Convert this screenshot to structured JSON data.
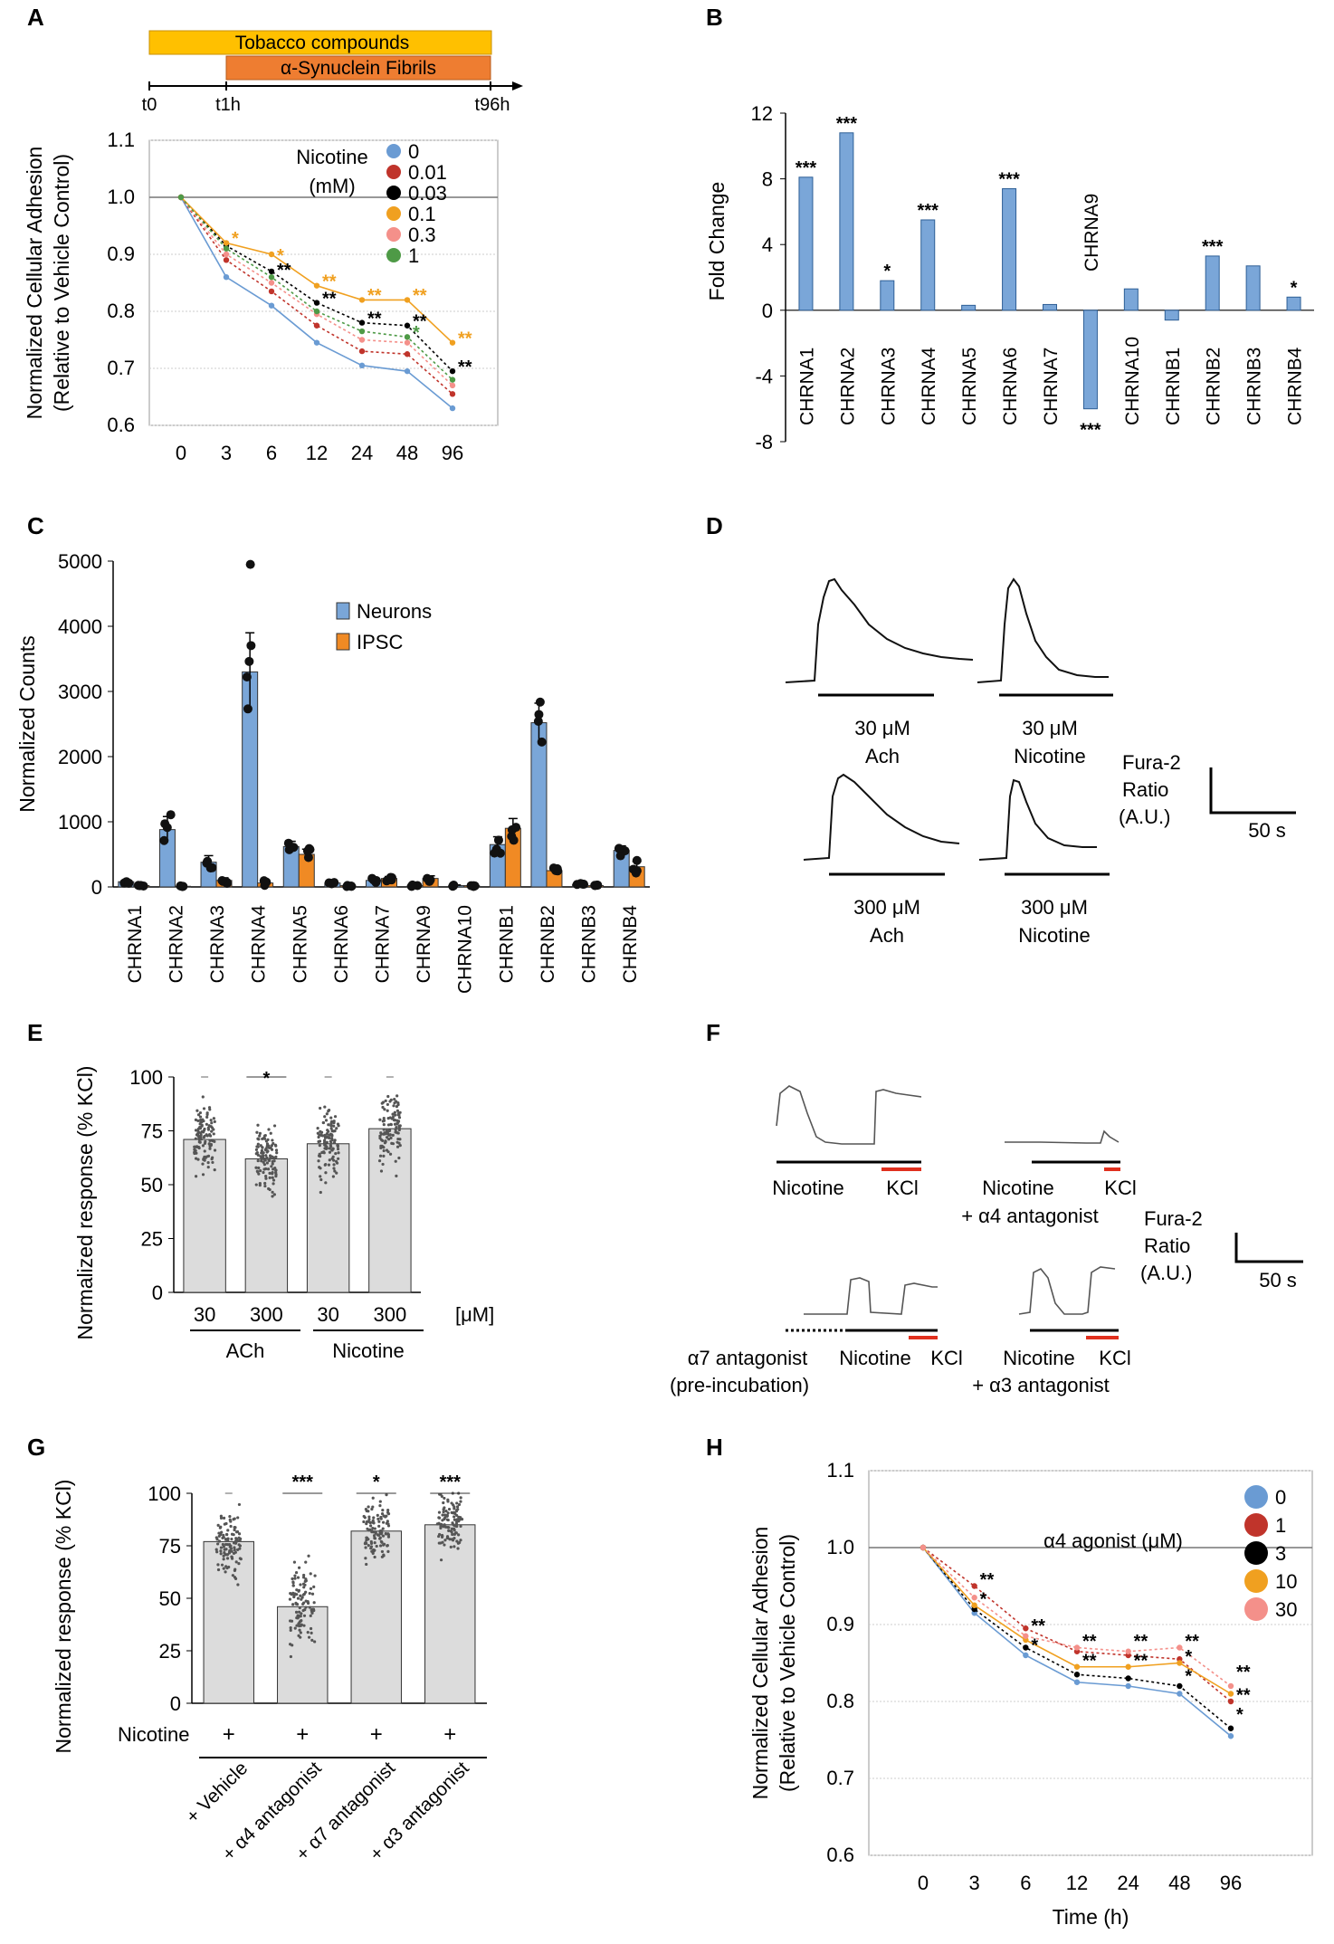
{
  "panel_labels": {
    "A": "A",
    "B": "B",
    "C": "C",
    "D": "D",
    "E": "E",
    "F": "F",
    "G": "G",
    "H": "H"
  },
  "colors": {
    "blue": "#6a9bd3",
    "bar_blue": "#7aa6d8",
    "orange": "#f0a020",
    "bar_orange": "#f08a24",
    "red": "#c0342b",
    "black": "#000000",
    "pink": "#f4908a",
    "green": "#4e9a46",
    "gray_bar": "#dcdcdc",
    "timeline_yellow": "#ffc000",
    "timeline_orange": "#ee7d31",
    "kcl_red": "#e0301e"
  },
  "timeline": {
    "bar1": "Tobacco compounds",
    "bar2": "α-Synuclein Fibrils",
    "t0": "t0",
    "t1": "t1h",
    "t96": "t96h"
  },
  "chart_data": [
    {
      "panel": "A",
      "type": "line",
      "ylabel_1": "Normalized Cellular Adhesion",
      "ylabel_2": "(Relative to Vehicle Control)",
      "categories": [
        "0",
        "3",
        "6",
        "12",
        "24",
        "48",
        "96"
      ],
      "ylim": [
        0.6,
        1.1
      ],
      "yticks": [
        "0.6",
        "0.7",
        "0.8",
        "0.9",
        "1.0",
        "1.1"
      ],
      "legend_title_1": "Nicotine",
      "legend_title_2": "(mM)",
      "series": [
        {
          "name": "0",
          "color": "#6a9bd3",
          "dash": false,
          "values": [
            1.0,
            0.86,
            0.81,
            0.745,
            0.705,
            0.695,
            0.63
          ]
        },
        {
          "name": "0.01",
          "color": "#c0342b",
          "dash": true,
          "values": [
            1.0,
            0.89,
            0.835,
            0.775,
            0.73,
            0.725,
            0.655
          ]
        },
        {
          "name": "0.03",
          "color": "#000000",
          "dash": true,
          "values": [
            1.0,
            0.915,
            0.87,
            0.815,
            0.78,
            0.775,
            0.695
          ]
        },
        {
          "name": "0.1",
          "color": "#f0a020",
          "dash": false,
          "values": [
            1.0,
            0.92,
            0.9,
            0.845,
            0.82,
            0.82,
            0.745
          ]
        },
        {
          "name": "0.3",
          "color": "#f4908a",
          "dash": true,
          "values": [
            1.0,
            0.9,
            0.85,
            0.795,
            0.75,
            0.745,
            0.67
          ]
        },
        {
          "name": "1",
          "color": "#4e9a46",
          "dash": true,
          "values": [
            1.0,
            0.91,
            0.86,
            0.8,
            0.765,
            0.755,
            0.68
          ]
        }
      ],
      "annotations": [
        {
          "text": "*",
          "x": 1,
          "y": 0.93,
          "color": "#f0a020"
        },
        {
          "text": "*",
          "x": 2,
          "y": 0.9,
          "color": "#f0a020"
        },
        {
          "text": "**",
          "x": 2,
          "y": 0.875,
          "color": "#000000"
        },
        {
          "text": "**",
          "x": 3,
          "y": 0.855,
          "color": "#f0a020"
        },
        {
          "text": "**",
          "x": 3,
          "y": 0.825,
          "color": "#000000"
        },
        {
          "text": "**",
          "x": 4,
          "y": 0.83,
          "color": "#f0a020"
        },
        {
          "text": "**",
          "x": 4,
          "y": 0.79,
          "color": "#000000"
        },
        {
          "text": "**",
          "x": 5,
          "y": 0.83,
          "color": "#f0a020"
        },
        {
          "text": "**",
          "x": 5,
          "y": 0.785,
          "color": "#000000"
        },
        {
          "text": "*",
          "x": 5,
          "y": 0.765,
          "color": "#4e9a46"
        },
        {
          "text": "**",
          "x": 6,
          "y": 0.755,
          "color": "#f0a020"
        },
        {
          "text": "**",
          "x": 6,
          "y": 0.705,
          "color": "#000000"
        }
      ]
    },
    {
      "panel": "B",
      "type": "bar",
      "ylabel": "Fold Change",
      "categories": [
        "CHRNA1",
        "CHRNA2",
        "CHRNA3",
        "CHRNA4",
        "CHRNA5",
        "CHRNA6",
        "CHRNA7",
        "CHRNA9",
        "CHRNA10",
        "CHRNB1",
        "CHRNB2",
        "CHRNB3",
        "CHRNB4"
      ],
      "values": [
        8.1,
        10.8,
        1.8,
        5.5,
        0.3,
        7.4,
        0.35,
        -6,
        1.3,
        -0.6,
        3.3,
        2.7,
        0.8
      ],
      "significance": [
        "***",
        "***",
        "*",
        "***",
        "",
        "***",
        "",
        "***",
        "",
        "",
        "***",
        "",
        "*"
      ],
      "ylim": [
        -8,
        12
      ],
      "yticks": [
        "-8",
        "-4",
        "0",
        "4",
        "8",
        "12"
      ]
    },
    {
      "panel": "C",
      "type": "bar",
      "ylabel": "Normalized Counts",
      "categories": [
        "CHRNA1",
        "CHRNA2",
        "CHRNA3",
        "CHRNA4",
        "CHRNA5",
        "CHRNA6",
        "CHRNA7",
        "CHRNA9",
        "CHRNA10",
        "CHRNB1",
        "CHRNB2",
        "CHRNB3",
        "CHRNB4"
      ],
      "ylim": [
        0,
        5000
      ],
      "yticks": [
        "0",
        "1000",
        "2000",
        "3000",
        "4000",
        "5000"
      ],
      "series": [
        {
          "name": "Neurons",
          "color": "#7aa6d8",
          "values": [
            80,
            880,
            380,
            3300,
            620,
            60,
            100,
            20,
            20,
            650,
            2520,
            40,
            560
          ],
          "errors": [
            20,
            200,
            100,
            600,
            80,
            15,
            30,
            10,
            10,
            120,
            300,
            10,
            70
          ]
        },
        {
          "name": "IPSC",
          "color": "#f08a24",
          "values": [
            20,
            10,
            100,
            60,
            500,
            20,
            130,
            130,
            20,
            900,
            250,
            20,
            310
          ],
          "errors": [
            10,
            5,
            40,
            30,
            80,
            10,
            30,
            40,
            10,
            150,
            40,
            10,
            80
          ]
        }
      ]
    },
    {
      "panel": "E",
      "type": "bar",
      "ylabel": "Normalized response (% KCl)",
      "categories": [
        "30",
        "300",
        "30",
        "300"
      ],
      "groups": [
        "ACh",
        "Nicotine"
      ],
      "unit": "[μM]",
      "values": [
        71,
        62,
        69,
        76
      ],
      "significance": [
        "",
        "*",
        "",
        ""
      ],
      "ylim": [
        0,
        100
      ],
      "yticks": [
        "0",
        "25",
        "50",
        "75",
        "100"
      ]
    },
    {
      "panel": "G",
      "type": "bar",
      "ylabel": "Normalized response (% KCl)",
      "row_label": "Nicotine",
      "plus": [
        "+",
        "+",
        "+",
        "+"
      ],
      "categories": [
        "+ Vehicle",
        "+ α4 antagonist",
        "+ α7 antagonist",
        "+ α3 antagonist"
      ],
      "values": [
        77,
        46,
        82,
        85
      ],
      "significance": [
        "",
        "***",
        "*",
        "***"
      ],
      "ylim": [
        0,
        100
      ],
      "yticks": [
        "0",
        "25",
        "50",
        "75",
        "100"
      ]
    },
    {
      "panel": "H",
      "type": "line",
      "ylabel_1": "Normalized Cellular Adhesion",
      "ylabel_2": "(Relative to Vehicle Control)",
      "xlabel": "Time (h)",
      "categories": [
        "0",
        "3",
        "6",
        "12",
        "24",
        "48",
        "96"
      ],
      "ylim": [
        0.6,
        1.1
      ],
      "yticks": [
        "0.6",
        "0.7",
        "0.8",
        "0.9",
        "1.0",
        "1.1"
      ],
      "legend_title": "α4 agonist (μM)",
      "series": [
        {
          "name": "0",
          "color": "#6a9bd3",
          "dash": false,
          "values": [
            1.0,
            0.915,
            0.86,
            0.825,
            0.82,
            0.81,
            0.755
          ]
        },
        {
          "name": "1",
          "color": "#c0342b",
          "dash": true,
          "values": [
            1.0,
            0.95,
            0.895,
            0.865,
            0.86,
            0.855,
            0.8
          ]
        },
        {
          "name": "3",
          "color": "#000000",
          "dash": true,
          "values": [
            1.0,
            0.92,
            0.87,
            0.835,
            0.83,
            0.82,
            0.765
          ]
        },
        {
          "name": "10",
          "color": "#f0a020",
          "dash": false,
          "values": [
            1.0,
            0.925,
            0.88,
            0.845,
            0.845,
            0.85,
            0.81
          ]
        },
        {
          "name": "30",
          "color": "#f4908a",
          "dash": true,
          "values": [
            1.0,
            0.935,
            0.885,
            0.87,
            0.865,
            0.87,
            0.82
          ]
        }
      ],
      "annotations": [
        {
          "text": "**",
          "x": 1,
          "y": 0.96
        },
        {
          "text": "*",
          "x": 1,
          "y": 0.935
        },
        {
          "text": "**",
          "x": 2,
          "y": 0.9
        },
        {
          "text": "*",
          "x": 2,
          "y": 0.875
        },
        {
          "text": "**",
          "x": 3,
          "y": 0.88
        },
        {
          "text": "**",
          "x": 3,
          "y": 0.855
        },
        {
          "text": "**",
          "x": 4,
          "y": 0.88
        },
        {
          "text": "**",
          "x": 4,
          "y": 0.855
        },
        {
          "text": "**",
          "x": 5,
          "y": 0.88
        },
        {
          "text": "*",
          "x": 5,
          "y": 0.86
        },
        {
          "text": "*",
          "x": 5,
          "y": 0.835
        },
        {
          "text": "**",
          "x": 6,
          "y": 0.84
        },
        {
          "text": "**",
          "x": 6,
          "y": 0.81
        },
        {
          "text": "*",
          "x": 6,
          "y": 0.785
        }
      ]
    }
  ],
  "traces_D": {
    "labels": [
      {
        "line1": "30 μM",
        "line2": "Ach"
      },
      {
        "line1": "30 μM",
        "line2": "Nicotine"
      },
      {
        "line1": "300 μM",
        "line2": "Ach"
      },
      {
        "line1": "300 μM",
        "line2": "Nicotine"
      }
    ],
    "scale_1": "Fura-2",
    "scale_2": "Ratio",
    "scale_3": "(A.U.)",
    "scale_time": "50 s"
  },
  "traces_F": {
    "nicotine": "Nicotine",
    "kcl": "KCl",
    "a4_antagonist": "+ α4 antagonist",
    "a7_line1": "α7 antagonist",
    "a7_line2": "(pre-incubation)",
    "a3_antagonist": "+ α3 antagonist",
    "scale_1": "Fura-2",
    "scale_2": "Ratio",
    "scale_3": "(A.U.)",
    "scale_time": "50 s"
  }
}
